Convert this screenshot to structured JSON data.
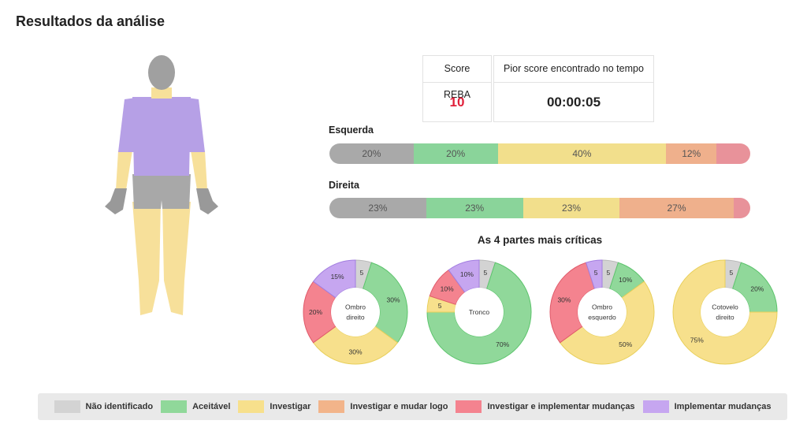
{
  "page_title": "Resultados da análise",
  "colors": {
    "nao_identificado": "#d3d3d3",
    "aceitavel": "#90d89a",
    "investigar": "#f7e08c",
    "investigar_mudar": "#f2b48a",
    "investigar_implementar": "#f4838f",
    "implementar": "#c6a6f0",
    "score_red": "#e0203a"
  },
  "body_regions": {
    "head": "gray",
    "neck": "yellow",
    "torso": "purple",
    "upper_arms": "purple",
    "forearms": "yellow",
    "hands": "gray",
    "hips": "gray",
    "legs": "yellow"
  },
  "score": {
    "reba_label": "Score REBA",
    "reba_value": "10",
    "worst_label": "Pior score encontrado no tempo",
    "worst_value": "00:00:05"
  },
  "sides": [
    {
      "label": "Esquerda",
      "segments": [
        {
          "value": 20,
          "text": "20%",
          "category": "nao_identificado"
        },
        {
          "value": 20,
          "text": "20%",
          "category": "aceitavel"
        },
        {
          "value": 40,
          "text": "40%",
          "category": "investigar"
        },
        {
          "value": 12,
          "text": "12%",
          "category": "investigar_mudar"
        },
        {
          "value": 8,
          "text": "",
          "category": "investigar_implementar"
        }
      ]
    },
    {
      "label": "Direita",
      "segments": [
        {
          "value": 23,
          "text": "23%",
          "category": "nao_identificado"
        },
        {
          "value": 23,
          "text": "23%",
          "category": "aceitavel"
        },
        {
          "value": 23,
          "text": "23%",
          "category": "investigar"
        },
        {
          "value": 27,
          "text": "27%",
          "category": "investigar_mudar"
        },
        {
          "value": 4,
          "text": "",
          "category": "investigar_implementar"
        }
      ]
    }
  ],
  "critical_title": "As 4 partes mais críticas",
  "chart_data": [
    {
      "type": "pie",
      "center_label": [
        "Ombro",
        "direito"
      ],
      "slices": [
        {
          "category": "nao_identificado",
          "value": 5,
          "label": "5"
        },
        {
          "category": "aceitavel",
          "value": 30,
          "label": "30%"
        },
        {
          "category": "investigar",
          "value": 30,
          "label": "30%"
        },
        {
          "category": "investigar_implementar",
          "value": 20,
          "label": "20%"
        },
        {
          "category": "implementar",
          "value": 15,
          "label": "15%"
        }
      ]
    },
    {
      "type": "pie",
      "center_label": [
        "Tronco"
      ],
      "slices": [
        {
          "category": "nao_identificado",
          "value": 5,
          "label": "5"
        },
        {
          "category": "aceitavel",
          "value": 70,
          "label": "70%"
        },
        {
          "category": "investigar",
          "value": 5,
          "label": "5"
        },
        {
          "category": "investigar_implementar",
          "value": 10,
          "label": "10%"
        },
        {
          "category": "implementar",
          "value": 10,
          "label": "10%"
        }
      ]
    },
    {
      "type": "pie",
      "center_label": [
        "Ombro",
        "esquerdo"
      ],
      "slices": [
        {
          "category": "nao_identificado",
          "value": 5,
          "label": "5"
        },
        {
          "category": "aceitavel",
          "value": 10,
          "label": "10%"
        },
        {
          "category": "investigar",
          "value": 50,
          "label": "50%"
        },
        {
          "category": "investigar_implementar",
          "value": 30,
          "label": "30%"
        },
        {
          "category": "implementar",
          "value": 5,
          "label": "5"
        }
      ]
    },
    {
      "type": "pie",
      "center_label": [
        "Cotovelo",
        "direito"
      ],
      "slices": [
        {
          "category": "nao_identificado",
          "value": 5,
          "label": "5"
        },
        {
          "category": "aceitavel",
          "value": 20,
          "label": "20%"
        },
        {
          "category": "investigar",
          "value": 75,
          "label": "75%"
        }
      ]
    }
  ],
  "legend": [
    {
      "category": "nao_identificado",
      "label": "Não identificado"
    },
    {
      "category": "aceitavel",
      "label": "Aceitável"
    },
    {
      "category": "investigar",
      "label": "Investigar"
    },
    {
      "category": "investigar_mudar",
      "label": "Investigar e mudar logo"
    },
    {
      "category": "investigar_implementar",
      "label": "Investigar e implementar mudanças"
    },
    {
      "category": "implementar",
      "label": "Implementar mudanças"
    }
  ]
}
